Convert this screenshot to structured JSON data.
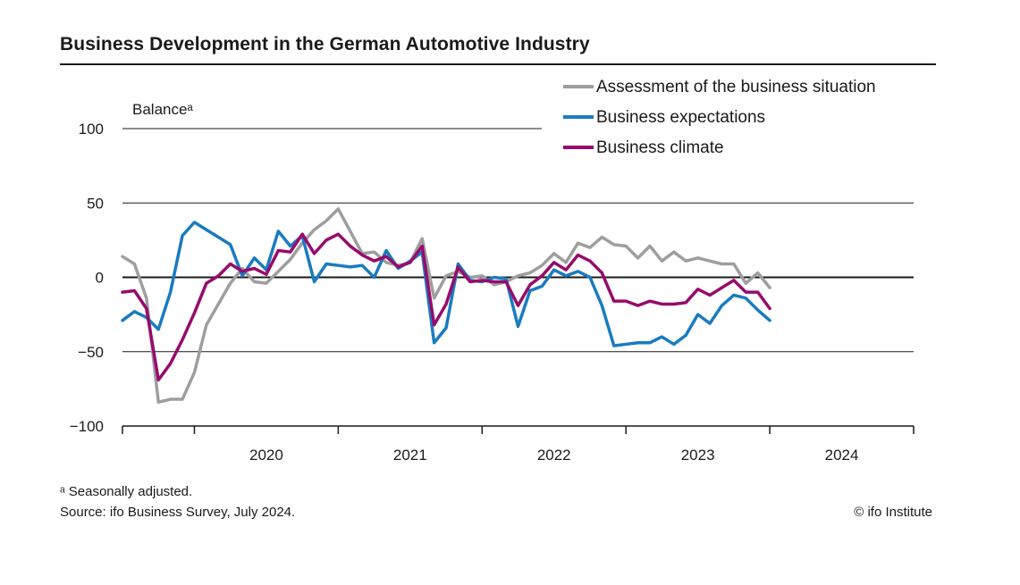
{
  "header": {
    "title": "Business Development in the German Automotive Industry"
  },
  "footer": {
    "footnote": "ᵃ Seasonally adjusted.",
    "source": "Source: ifo Business Survey, July 2024.",
    "copyright": "© ifo Institute"
  },
  "colors": {
    "assessment": "#9e9e9e",
    "expectations": "#1b7bbf",
    "climate": "#960c6c",
    "axis": "#1a1a1a"
  },
  "chart_data": {
    "type": "line",
    "title": "Business Development in the German Automotive Industry",
    "ylabel": "Balanceᵃ",
    "xlabel": "",
    "ylim": [
      -100,
      100
    ],
    "yticks": [
      100,
      50,
      0,
      -50,
      -100
    ],
    "ytick_labels": [
      "100",
      "50",
      "0",
      "−50",
      "−100"
    ],
    "gridlines": [
      50,
      0,
      -50
    ],
    "year_labels": [
      "2020",
      "2021",
      "2022",
      "2023",
      "2024"
    ],
    "x_start": "2019-07",
    "x_end": "2024-12",
    "x_step": "month",
    "legend_position": "top-right",
    "series": [
      {
        "name": "Assessment of the business situation",
        "color": "#9e9e9e",
        "values": [
          14,
          9,
          -14,
          -84,
          -82,
          -82,
          -64,
          -32,
          -18,
          -4,
          6,
          -3,
          -4,
          4,
          12,
          23,
          32,
          38,
          46,
          31,
          16,
          17,
          10,
          8,
          10,
          26,
          -14,
          1,
          4,
          0,
          1,
          -5,
          -3,
          1,
          3,
          8,
          16,
          10,
          23,
          20,
          27,
          22,
          21,
          13,
          21,
          11,
          17,
          11,
          13,
          11,
          9,
          9,
          -4,
          3,
          -7
        ]
      },
      {
        "name": "Business expectations",
        "color": "#1b7bbf",
        "values": [
          -29,
          -23,
          -27,
          -35,
          -10,
          28,
          37,
          32,
          27,
          22,
          1,
          13,
          5,
          31,
          21,
          28,
          -3,
          9,
          8,
          7,
          8,
          0,
          18,
          6,
          11,
          17,
          -44,
          -34,
          9,
          -2,
          -3,
          0,
          -1,
          -33,
          -9,
          -6,
          5,
          1,
          4,
          0,
          -19,
          -46,
          -45,
          -44,
          -44,
          -40,
          -45,
          -39,
          -25,
          -31,
          -19,
          -12,
          -14,
          -22,
          -29
        ]
      },
      {
        "name": "Business climate",
        "color": "#960c6c",
        "values": [
          -10,
          -9,
          -21,
          -69,
          -58,
          -42,
          -24,
          -4,
          1,
          9,
          4,
          6,
          2,
          18,
          17,
          29,
          16,
          25,
          29,
          21,
          15,
          11,
          14,
          7,
          10,
          21,
          -32,
          -18,
          7,
          -3,
          -2,
          -3,
          -3,
          -19,
          -5,
          1,
          10,
          5,
          15,
          11,
          3,
          -16,
          -16,
          -19,
          -16,
          -18,
          -18,
          -17,
          -8,
          -12,
          -7,
          -2,
          -10,
          -10,
          -21
        ]
      }
    ]
  }
}
